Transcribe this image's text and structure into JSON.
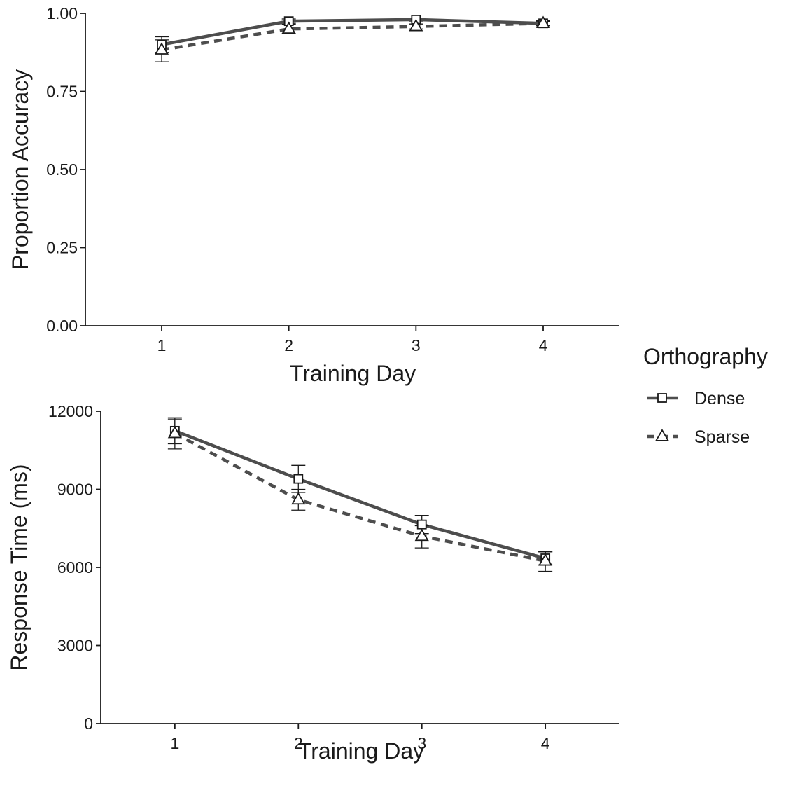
{
  "chart_data": [
    {
      "type": "line",
      "panel": "top",
      "xlabel": "Training Day",
      "ylabel": "Proportion Accuracy",
      "x": [
        1,
        2,
        3,
        4
      ],
      "xlim": [
        0.4,
        4.6
      ],
      "ylim": [
        0,
        1
      ],
      "yticks": [
        0,
        0.25,
        0.5,
        0.75,
        1
      ],
      "ytick_labels": [
        "0.00",
        "0.25",
        "0.50",
        "0.75",
        "1.00"
      ],
      "xtick_labels": [
        "1",
        "2",
        "3",
        "4"
      ],
      "grid": false,
      "series": [
        {
          "name": "Dense",
          "values": [
            0.9,
            0.975,
            0.98,
            0.968
          ],
          "err_low": [
            0.875,
            0.968,
            0.975,
            0.962
          ],
          "err_high": [
            0.925,
            0.982,
            0.985,
            0.974
          ],
          "line_style": "solid",
          "marker": "square",
          "color": "#4d4d4d"
        },
        {
          "name": "Sparse",
          "values": [
            0.883,
            0.95,
            0.958,
            0.968
          ],
          "err_low": [
            0.845,
            0.935,
            0.95,
            0.96
          ],
          "err_high": [
            0.915,
            0.965,
            0.966,
            0.976
          ],
          "line_style": "dashed",
          "marker": "triangle",
          "color": "#4d4d4d"
        }
      ]
    },
    {
      "type": "line",
      "panel": "bottom",
      "xlabel": "Training Day",
      "ylabel": "Response Time (ms)",
      "x": [
        1,
        2,
        3,
        4
      ],
      "xlim": [
        0.4,
        4.6
      ],
      "ylim": [
        0,
        12000
      ],
      "yticks": [
        0,
        3000,
        6000,
        9000,
        12000
      ],
      "ytick_labels": [
        "0",
        "3000",
        "6000",
        "9000",
        "12000"
      ],
      "xtick_labels": [
        "1",
        "2",
        "3",
        "4"
      ],
      "grid": false,
      "series": [
        {
          "name": "Dense",
          "values": [
            11250,
            9400,
            7650,
            6350
          ],
          "err_low": [
            10750,
            8880,
            7300,
            6100
          ],
          "err_high": [
            11750,
            9920,
            8000,
            6600
          ],
          "line_style": "solid",
          "marker": "square",
          "color": "#4d4d4d"
        },
        {
          "name": "Sparse",
          "values": [
            11150,
            8600,
            7200,
            6250
          ],
          "err_low": [
            10550,
            8200,
            6750,
            5850
          ],
          "err_high": [
            11700,
            9000,
            7600,
            6600
          ],
          "line_style": "dashed",
          "marker": "triangle",
          "color": "#4d4d4d"
        }
      ]
    }
  ],
  "legend": {
    "title": "Orthography",
    "placement": "right",
    "entries": [
      {
        "label": "Dense",
        "line_style": "solid",
        "marker": "square"
      },
      {
        "label": "Sparse",
        "line_style": "dashed",
        "marker": "triangle"
      }
    ]
  }
}
